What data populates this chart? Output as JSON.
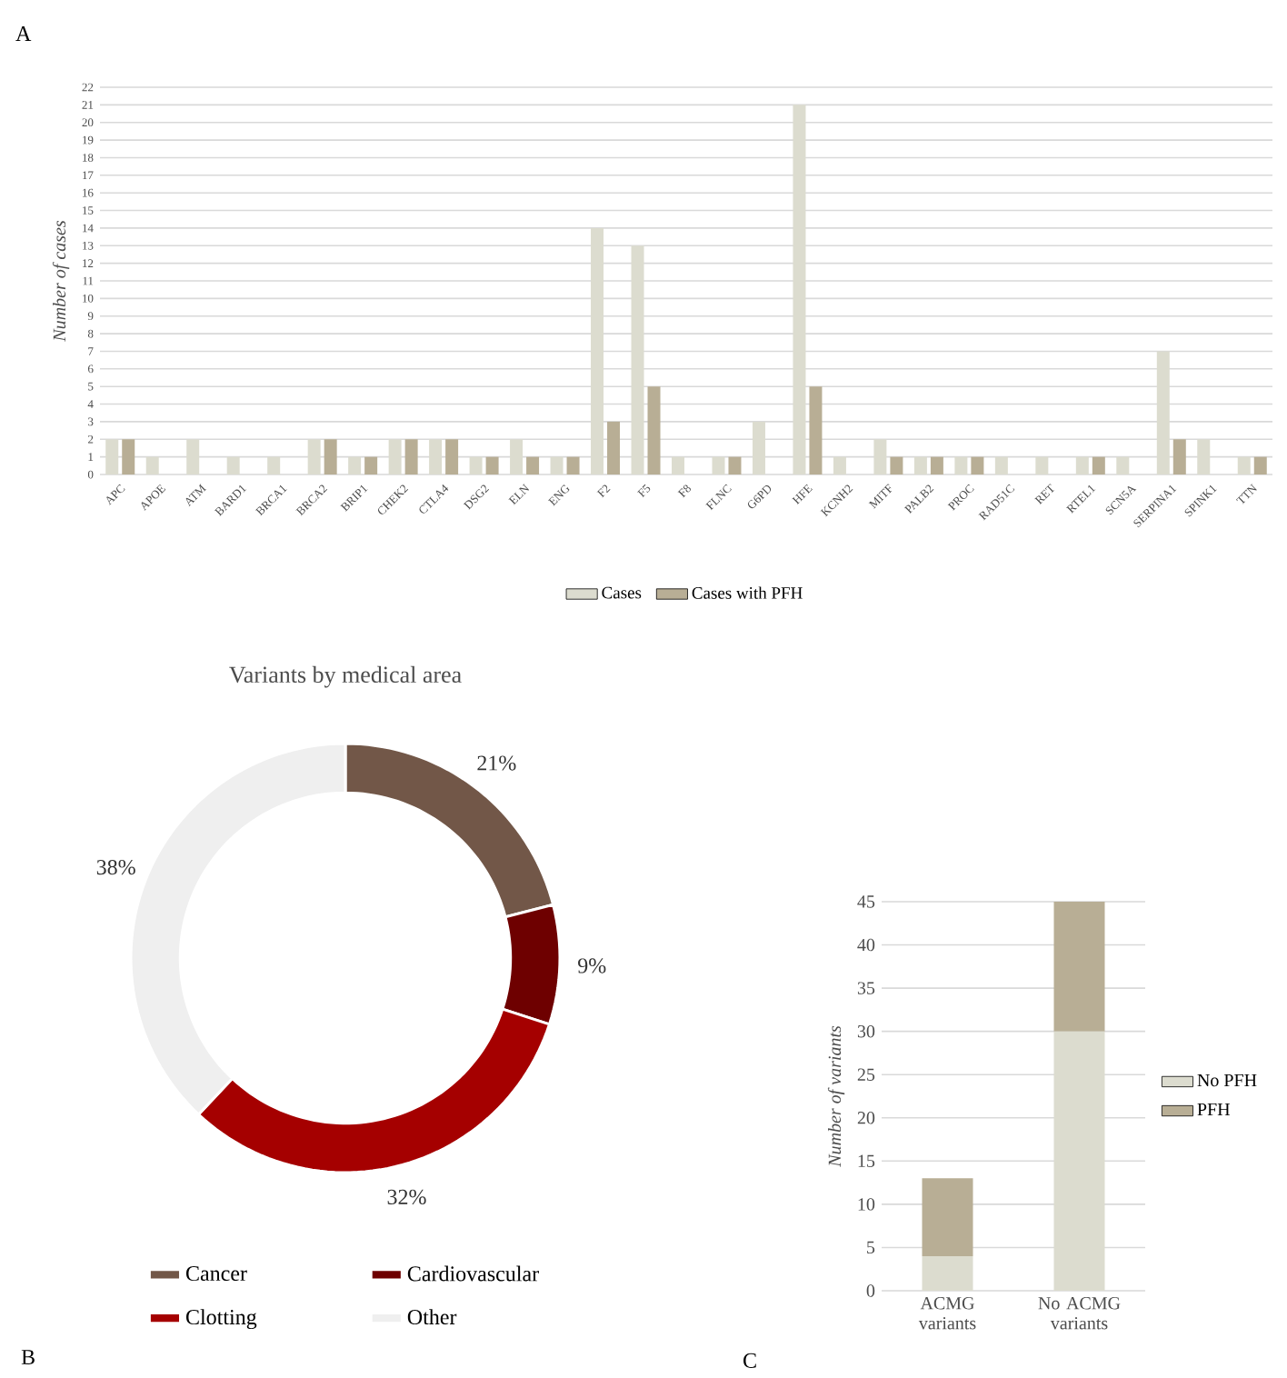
{
  "chart_data": [
    {
      "type": "bar",
      "annotations": [
        "A"
      ],
      "ylabel": "Number of cases",
      "categories": [
        "APC",
        "APOE",
        "ATM",
        "BARD1",
        "BRCA1",
        "BRCA2",
        "BRIP1",
        "CHEK2",
        "CTLA4",
        "DSG2",
        "ELN",
        "ENG",
        "F2",
        "F5",
        "F8",
        "FLNC",
        "G6PD",
        "HFE",
        "KCNH2",
        "MITF",
        "PALB2",
        "PROC",
        "RAD51C",
        "RET",
        "RTEL1",
        "SCN5A",
        "SERPINA1",
        "SPINK1",
        "TTN"
      ],
      "series": [
        {
          "name": "Cases",
          "color": "#dcdccf",
          "values": [
            2,
            1,
            2,
            1,
            1,
            2,
            1,
            2,
            2,
            1,
            2,
            1,
            14,
            13,
            1,
            1,
            3,
            21,
            1,
            2,
            1,
            1,
            1,
            1,
            1,
            1,
            7,
            2,
            1
          ]
        },
        {
          "name": "Cases with PFH",
          "color": "#b8ae95",
          "values": [
            2,
            0,
            0,
            0,
            0,
            2,
            1,
            2,
            2,
            1,
            1,
            1,
            3,
            5,
            0,
            1,
            0,
            5,
            0,
            1,
            1,
            1,
            0,
            0,
            1,
            0,
            2,
            0,
            1
          ]
        }
      ],
      "ylim": [
        0,
        22
      ],
      "yticks": [
        0,
        1,
        2,
        3,
        4,
        5,
        6,
        7,
        8,
        9,
        10,
        11,
        12,
        13,
        14,
        15,
        16,
        17,
        18,
        19,
        20,
        21,
        22
      ],
      "grid": "y",
      "legend": "bottom"
    },
    {
      "type": "donut",
      "annotations": [
        "B"
      ],
      "title": "Variants by medical area",
      "categories": [
        "Cancer",
        "Cardiovascular",
        "Clotting",
        "Other"
      ],
      "values": [
        21,
        9,
        32,
        38
      ],
      "colors": [
        "#725748",
        "#6e0000",
        "#a50000",
        "#efefef"
      ],
      "value_labels": [
        "21%",
        "9%",
        "32%",
        "38%"
      ],
      "legend": "bottom"
    },
    {
      "type": "bar",
      "stacked": true,
      "annotations": [
        "C"
      ],
      "ylabel": "Number of variants",
      "categories": [
        "ACMG variants",
        "No ACMG variants"
      ],
      "series": [
        {
          "name": "No PFH",
          "color": "#dcdccf",
          "values": [
            4,
            30
          ]
        },
        {
          "name": "PFH",
          "color": "#b8ae95",
          "values": [
            9,
            15
          ]
        }
      ],
      "ylim": [
        0,
        45
      ],
      "yticks": [
        0,
        5,
        10,
        15,
        20,
        25,
        30,
        35,
        40,
        45
      ],
      "grid": "y",
      "legend": "right"
    }
  ]
}
